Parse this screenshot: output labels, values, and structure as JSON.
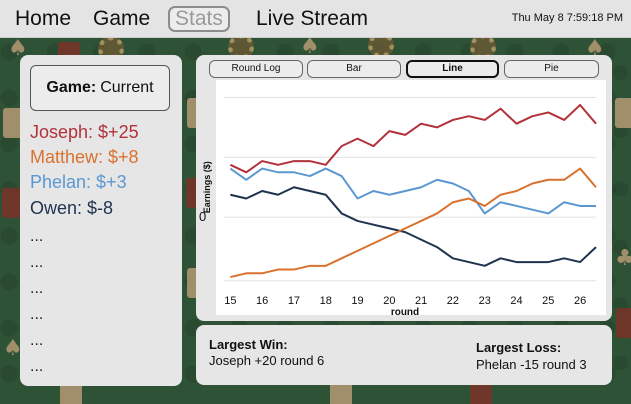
{
  "nav": {
    "items": [
      "Home",
      "Game",
      "Stats",
      "Live Stream"
    ],
    "active": "Stats",
    "datetime": "Thu May 8 7:59:18 PM"
  },
  "sidebar": {
    "game_label": "Game:",
    "game_value": "Current",
    "players": [
      {
        "text": "Joseph: $+25",
        "color": "#b2313a"
      },
      {
        "text": "Matthew: $+8",
        "color": "#d9722e"
      },
      {
        "text": "Phelan: $+3",
        "color": "#5b97d1"
      },
      {
        "text": "Owen: $-8",
        "color": "#1f3350"
      }
    ],
    "ellipses": [
      "...",
      "...",
      "...",
      "...",
      "...",
      "..."
    ]
  },
  "tabs": {
    "round_log": "Round Log",
    "bar": "Bar",
    "line": "Line",
    "pie": "Pie",
    "active": "Line"
  },
  "stats": {
    "largest_win_label": "Largest Win:",
    "largest_win_value": "Joseph +20 round 6",
    "largest_loss_label": "Largest Loss:",
    "largest_loss_value": "Phelan -15 round 3"
  },
  "chart_data": {
    "type": "line",
    "xlabel": "round",
    "ylabel": "Earnings ($)",
    "x_ticks": [
      15,
      16,
      17,
      18,
      19,
      20,
      21,
      22,
      23,
      24,
      25,
      26
    ],
    "y_ticks": [
      "0"
    ],
    "xlim": [
      14.8,
      26.5
    ],
    "ylim": [
      -20,
      34
    ],
    "grid": "horizontal",
    "x": [
      15,
      15.5,
      16,
      16.5,
      17,
      17.5,
      18,
      18.5,
      19,
      19.5,
      20,
      20.5,
      21,
      21.5,
      22,
      22.5,
      23,
      23.5,
      24,
      24.5,
      25,
      25.5,
      26,
      26.5
    ],
    "series": [
      {
        "color": "#b2313a",
        "values": [
          14,
          12,
          15,
          14,
          15,
          15,
          14,
          19,
          21,
          19,
          23,
          22,
          25,
          24,
          26,
          27,
          26,
          29,
          25,
          27,
          28,
          26,
          30,
          25
        ]
      },
      {
        "color": "#5b97d1",
        "values": [
          13,
          10,
          13,
          12,
          12,
          11,
          13,
          11,
          5,
          7,
          6,
          7,
          8,
          10,
          9,
          7,
          1,
          4,
          3,
          2,
          1,
          4,
          3,
          3
        ]
      },
      {
        "color": "#1f3350",
        "values": [
          6,
          5,
          7,
          6,
          8,
          7,
          6,
          1,
          -1,
          -2,
          -3,
          -4,
          -6,
          -8,
          -11,
          -12,
          -13,
          -11,
          -12,
          -12,
          -12,
          -11,
          -12,
          -8
        ]
      },
      {
        "color": "#d9722e",
        "values": [
          -16,
          -15,
          -15,
          -14,
          -14,
          -13,
          -13,
          -11,
          -9,
          -7,
          -5,
          -3,
          -1,
          1,
          4,
          5,
          3,
          6,
          7,
          9,
          10,
          10,
          13,
          8
        ]
      }
    ]
  }
}
